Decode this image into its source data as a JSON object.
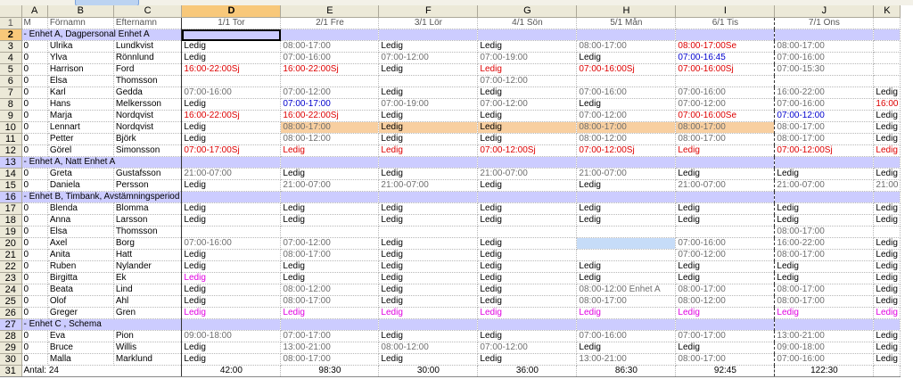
{
  "columns": [
    {
      "letter": "A",
      "width": 23
    },
    {
      "letter": "B",
      "width": 58
    },
    {
      "letter": "C",
      "width": 60
    },
    {
      "letter": "D",
      "width": 111
    },
    {
      "letter": "E",
      "width": 110
    },
    {
      "letter": "F",
      "width": 111
    },
    {
      "letter": "G",
      "width": 111
    },
    {
      "letter": "H",
      "width": 111
    },
    {
      "letter": "I",
      "width": 111
    },
    {
      "letter": "J",
      "width": 111
    },
    {
      "letter": "K",
      "width": 24
    }
  ],
  "selected_column": "D",
  "selected_row": "2",
  "header_row": {
    "num": "1",
    "cells": [
      {
        "text": "M",
        "color": "c-gray"
      },
      {
        "text": "Förnamn",
        "color": "c-gray"
      },
      {
        "text": "Efternamn",
        "color": "c-gray"
      },
      {
        "text": "1/1   Tor",
        "color": "c-red",
        "align": "center"
      },
      {
        "text": "2/1   Fre",
        "color": "c-gray",
        "align": "center"
      },
      {
        "text": "3/1   Lör",
        "color": "c-gray",
        "align": "center"
      },
      {
        "text": "4/1   Sön",
        "color": "c-red",
        "align": "center"
      },
      {
        "text": "5/1   Mån",
        "color": "c-blue",
        "align": "center"
      },
      {
        "text": "6/1   Tis",
        "color": "c-red",
        "align": "center"
      },
      {
        "text": "7/1   Ons",
        "color": "c-gray",
        "align": "center"
      },
      {
        "text": "",
        "color": "c-gray"
      }
    ]
  },
  "rows": [
    {
      "num": "2",
      "type": "group",
      "label": "- Enhet A, Dagpersonal Enhet A"
    },
    {
      "num": "3",
      "m": "0",
      "first": "Ulrika",
      "last": "Lundkvist",
      "days": [
        [
          "Ledig",
          "c-black"
        ],
        [
          "08:00-17:00",
          "c-gray"
        ],
        [
          "Ledig",
          "c-black"
        ],
        [
          "Ledig",
          "c-black"
        ],
        [
          "08:00-17:00",
          "c-gray"
        ],
        [
          "08:00-17:00Se",
          "c-red"
        ],
        [
          "08:00-17:00",
          "c-gray"
        ],
        [
          "",
          "c-black"
        ]
      ]
    },
    {
      "num": "4",
      "m": "0",
      "first": "Ylva",
      "last": "Rönnlund",
      "days": [
        [
          "Ledig",
          "c-black"
        ],
        [
          "07:00-16:00",
          "c-gray"
        ],
        [
          "07:00-12:00",
          "c-gray"
        ],
        [
          "07:00-19:00",
          "c-gray"
        ],
        [
          "Ledig",
          "c-black"
        ],
        [
          "07:00-16:45",
          "c-blue"
        ],
        [
          "07:00-16:00",
          "c-gray"
        ],
        [
          "",
          "c-black"
        ]
      ]
    },
    {
      "num": "5",
      "m": "0",
      "first": "Harrison",
      "last": "Ford",
      "days": [
        [
          "16:00-22:00Sj",
          "c-red"
        ],
        [
          "16:00-22:00Sj",
          "c-red"
        ],
        [
          "Ledig",
          "c-black"
        ],
        [
          "Ledig",
          "c-red"
        ],
        [
          "07:00-16:00Sj",
          "c-red"
        ],
        [
          "07:00-16:00Sj",
          "c-red"
        ],
        [
          "07:00-15:30",
          "c-gray"
        ],
        [
          "",
          "c-black"
        ]
      ]
    },
    {
      "num": "6",
      "m": "0",
      "first": "Elsa",
      "last": "Thomsson",
      "days": [
        [
          "",
          "c-black"
        ],
        [
          "",
          "c-black"
        ],
        [
          "",
          "c-black"
        ],
        [
          "07:00-12:00",
          "c-gray"
        ],
        [
          "",
          "c-black"
        ],
        [
          "",
          "c-black"
        ],
        [
          "",
          "c-black"
        ],
        [
          "",
          "c-black"
        ]
      ]
    },
    {
      "num": "7",
      "m": "0",
      "first": "Karl",
      "last": "Gedda",
      "days": [
        [
          "07:00-16:00",
          "c-gray"
        ],
        [
          "07:00-12:00",
          "c-gray"
        ],
        [
          "Ledig",
          "c-black"
        ],
        [
          "Ledig",
          "c-black"
        ],
        [
          "07:00-16:00",
          "c-gray"
        ],
        [
          "07:00-16:00",
          "c-gray"
        ],
        [
          "16:00-22:00",
          "c-gray"
        ],
        [
          "Ledig",
          "c-black"
        ]
      ]
    },
    {
      "num": "8",
      "m": "0",
      "first": "Hans",
      "last": "Melkersson",
      "days": [
        [
          "Ledig",
          "c-black"
        ],
        [
          "07:00-17:00",
          "c-blue"
        ],
        [
          "07:00-19:00",
          "c-gray"
        ],
        [
          "07:00-12:00",
          "c-gray"
        ],
        [
          "Ledig",
          "c-black"
        ],
        [
          "07:00-12:00",
          "c-gray"
        ],
        [
          "07:00-16:00",
          "c-gray"
        ],
        [
          "16:00",
          "c-red"
        ]
      ]
    },
    {
      "num": "9",
      "m": "0",
      "first": "Marja",
      "last": "Nordqvist",
      "days": [
        [
          "16:00-22:00Sj",
          "c-red"
        ],
        [
          "16:00-22:00Sj",
          "c-red"
        ],
        [
          "Ledig",
          "c-black"
        ],
        [
          "Ledig",
          "c-black"
        ],
        [
          "07:00-12:00",
          "c-gray"
        ],
        [
          "07:00-16:00Se",
          "c-red"
        ],
        [
          "07:00-12:00",
          "c-blue"
        ],
        [
          "Ledig",
          "c-black"
        ]
      ]
    },
    {
      "num": "10",
      "m": "0",
      "first": "Lennart",
      "last": "Nordqvist",
      "days": [
        [
          "Ledig",
          "c-black"
        ],
        [
          "08:00-17:00",
          "c-gray"
        ],
        [
          "Ledig",
          "c-black"
        ],
        [
          "Ledig",
          "c-black"
        ],
        [
          "08:00-17:00",
          "c-gray"
        ],
        [
          "08:00-17:00",
          "c-gray"
        ],
        [
          "08:00-17:00",
          "c-gray"
        ],
        [
          "Ledig",
          "c-black"
        ]
      ],
      "highlight": "bg-orange"
    },
    {
      "num": "11",
      "m": "0",
      "first": "Petter",
      "last": "Björk",
      "days": [
        [
          "Ledig",
          "c-black"
        ],
        [
          "08:00-12:00",
          "c-gray"
        ],
        [
          "Ledig",
          "c-black"
        ],
        [
          "Ledig",
          "c-black"
        ],
        [
          "08:00-12:00",
          "c-gray"
        ],
        [
          "08:00-17:00",
          "c-gray"
        ],
        [
          "08:00-17:00",
          "c-gray"
        ],
        [
          "Ledig",
          "c-black"
        ]
      ]
    },
    {
      "num": "12",
      "m": "0",
      "first": "Görel",
      "last": "Simonsson",
      "days": [
        [
          "07:00-17:00Sj",
          "c-red"
        ],
        [
          "Ledig",
          "c-red"
        ],
        [
          "Ledig",
          "c-red"
        ],
        [
          "07:00-12:00Sj",
          "c-red"
        ],
        [
          "07:00-12:00Sj",
          "c-red"
        ],
        [
          "Ledig",
          "c-red"
        ],
        [
          "07:00-12:00Sj",
          "c-red"
        ],
        [
          "Ledig",
          "c-red"
        ]
      ]
    },
    {
      "num": "13",
      "type": "group",
      "label": "- Enhet A, Natt Enhet A"
    },
    {
      "num": "14",
      "m": "0",
      "first": "Greta",
      "last": "Gustafsson",
      "days": [
        [
          "21:00-07:00",
          "c-gray"
        ],
        [
          "Ledig",
          "c-black"
        ],
        [
          "Ledig",
          "c-black"
        ],
        [
          "21:00-07:00",
          "c-gray"
        ],
        [
          "21:00-07:00",
          "c-gray"
        ],
        [
          "Ledig",
          "c-black"
        ],
        [
          "Ledig",
          "c-black"
        ],
        [
          "Ledig",
          "c-black"
        ]
      ]
    },
    {
      "num": "15",
      "m": "0",
      "first": "Daniela",
      "last": "Persson",
      "days": [
        [
          "Ledig",
          "c-black"
        ],
        [
          "21:00-07:00",
          "c-gray"
        ],
        [
          "21:00-07:00",
          "c-gray"
        ],
        [
          "Ledig",
          "c-black"
        ],
        [
          "Ledig",
          "c-black"
        ],
        [
          "21:00-07:00",
          "c-gray"
        ],
        [
          "21:00-07:00",
          "c-gray"
        ],
        [
          "21:00",
          "c-gray"
        ]
      ]
    },
    {
      "num": "16",
      "type": "group",
      "label": "- Enhet B, Timbank, Avstämningsperiod"
    },
    {
      "num": "17",
      "m": "0",
      "first": "Blenda",
      "last": "Blomma",
      "days": [
        [
          "Ledig",
          "c-black"
        ],
        [
          "Ledig",
          "c-black"
        ],
        [
          "Ledig",
          "c-black"
        ],
        [
          "Ledig",
          "c-black"
        ],
        [
          "Ledig",
          "c-black"
        ],
        [
          "Ledig",
          "c-black"
        ],
        [
          "Ledig",
          "c-black"
        ],
        [
          "Ledig",
          "c-black"
        ]
      ]
    },
    {
      "num": "18",
      "m": "0",
      "first": "Anna",
      "last": "Larsson",
      "days": [
        [
          "Ledig",
          "c-black"
        ],
        [
          "Ledig",
          "c-black"
        ],
        [
          "Ledig",
          "c-black"
        ],
        [
          "Ledig",
          "c-black"
        ],
        [
          "Ledig",
          "c-black"
        ],
        [
          "Ledig",
          "c-black"
        ],
        [
          "Ledig",
          "c-black"
        ],
        [
          "Ledig",
          "c-black"
        ]
      ]
    },
    {
      "num": "19",
      "m": "0",
      "first": "Elsa",
      "last": "Thomsson",
      "days": [
        [
          "",
          "c-black"
        ],
        [
          "",
          "c-black"
        ],
        [
          "",
          "c-black"
        ],
        [
          "",
          "c-black"
        ],
        [
          "",
          "c-black"
        ],
        [
          "",
          "c-black"
        ],
        [
          "08:00-17:00",
          "c-gray"
        ],
        [
          "",
          "c-black"
        ]
      ]
    },
    {
      "num": "20",
      "m": "0",
      "first": "Axel",
      "last": "Borg",
      "days": [
        [
          "07:00-16:00",
          "c-gray"
        ],
        [
          "07:00-12:00",
          "c-gray"
        ],
        [
          "Ledig",
          "c-black"
        ],
        [
          "Ledig",
          "c-black"
        ],
        [
          "",
          "c-black",
          "bg-blue"
        ],
        [
          "07:00-16:00",
          "c-gray"
        ],
        [
          "16:00-22:00",
          "c-gray"
        ],
        [
          "Ledig",
          "c-black"
        ]
      ]
    },
    {
      "num": "21",
      "m": "0",
      "first": "Anita",
      "last": "Hatt",
      "days": [
        [
          "Ledig",
          "c-black"
        ],
        [
          "08:00-17:00",
          "c-gray"
        ],
        [
          "Ledig",
          "c-black"
        ],
        [
          "Ledig",
          "c-black"
        ],
        [
          "",
          "c-black"
        ],
        [
          "07:00-12:00",
          "c-gray"
        ],
        [
          "08:00-17:00",
          "c-gray"
        ],
        [
          "Ledig",
          "c-black"
        ]
      ]
    },
    {
      "num": "22",
      "m": "0",
      "first": "Ruben",
      "last": "Nylander",
      "days": [
        [
          "Ledig",
          "c-black"
        ],
        [
          "Ledig",
          "c-black"
        ],
        [
          "Ledig",
          "c-black"
        ],
        [
          "Ledig",
          "c-black"
        ],
        [
          "Ledig",
          "c-black"
        ],
        [
          "Ledig",
          "c-black"
        ],
        [
          "Ledig",
          "c-black"
        ],
        [
          "Ledig",
          "c-black"
        ]
      ]
    },
    {
      "num": "23",
      "m": "0",
      "first": "Birgitta",
      "last": "Ek",
      "days": [
        [
          "Ledig",
          "c-pink"
        ],
        [
          "Ledig",
          "c-black"
        ],
        [
          "Ledig",
          "c-black"
        ],
        [
          "Ledig",
          "c-black"
        ],
        [
          "Ledig",
          "c-black"
        ],
        [
          "Ledig",
          "c-black"
        ],
        [
          "Ledig",
          "c-black"
        ],
        [
          "Ledig",
          "c-black"
        ]
      ]
    },
    {
      "num": "24",
      "m": "0",
      "first": "Beata",
      "last": "Lind",
      "days": [
        [
          "Ledig",
          "c-black"
        ],
        [
          "08:00-12:00",
          "c-gray"
        ],
        [
          "Ledig",
          "c-black"
        ],
        [
          "Ledig",
          "c-black"
        ],
        [
          "08:00-12:00 Enhet A",
          "c-gray"
        ],
        [
          "08:00-17:00",
          "c-gray"
        ],
        [
          "08:00-17:00",
          "c-gray"
        ],
        [
          "Ledig",
          "c-black"
        ]
      ]
    },
    {
      "num": "25",
      "m": "0",
      "first": "Olof",
      "last": "Ahl",
      "days": [
        [
          "Ledig",
          "c-black"
        ],
        [
          "08:00-17:00",
          "c-gray"
        ],
        [
          "Ledig",
          "c-black"
        ],
        [
          "Ledig",
          "c-black"
        ],
        [
          "08:00-17:00",
          "c-gray"
        ],
        [
          "08:00-12:00",
          "c-gray"
        ],
        [
          "08:00-17:00",
          "c-gray"
        ],
        [
          "Ledig",
          "c-black"
        ]
      ]
    },
    {
      "num": "26",
      "m": "0",
      "first": "Greger",
      "last": "Gren",
      "days": [
        [
          "Ledig",
          "c-pink"
        ],
        [
          "Ledig",
          "c-pink"
        ],
        [
          "Ledig",
          "c-pink"
        ],
        [
          "Ledig",
          "c-pink"
        ],
        [
          "Ledig",
          "c-pink"
        ],
        [
          "Ledig",
          "c-pink"
        ],
        [
          "Ledig",
          "c-pink"
        ],
        [
          "Ledig",
          "c-pink"
        ]
      ]
    },
    {
      "num": "27",
      "type": "group",
      "label": "- Enhet C , Schema"
    },
    {
      "num": "28",
      "m": "0",
      "first": "Eva",
      "last": "Pion",
      "days": [
        [
          "09:00-18:00",
          "c-gray"
        ],
        [
          "07:00-17:00",
          "c-gray"
        ],
        [
          "Ledig",
          "c-black"
        ],
        [
          "Ledig",
          "c-black"
        ],
        [
          "07:00-16:00",
          "c-gray"
        ],
        [
          "07:00-17:00",
          "c-gray"
        ],
        [
          "13:00-21:00",
          "c-gray"
        ],
        [
          "Ledig",
          "c-black"
        ]
      ]
    },
    {
      "num": "29",
      "m": "0",
      "first": "Bruce",
      "last": "Willis",
      "days": [
        [
          "Ledig",
          "c-black"
        ],
        [
          "13:00-21:00",
          "c-gray"
        ],
        [
          "08:00-12:00",
          "c-gray"
        ],
        [
          "07:00-12:00",
          "c-gray"
        ],
        [
          "Ledig",
          "c-black"
        ],
        [
          "Ledig",
          "c-black"
        ],
        [
          "09:00-18:00",
          "c-gray"
        ],
        [
          "Ledig",
          "c-black"
        ]
      ]
    },
    {
      "num": "30",
      "m": "0",
      "first": "Malla",
      "last": "Marklund",
      "days": [
        [
          "Ledig",
          "c-black"
        ],
        [
          "08:00-17:00",
          "c-gray"
        ],
        [
          "Ledig",
          "c-black"
        ],
        [
          "Ledig",
          "c-black"
        ],
        [
          "13:00-21:00",
          "c-gray"
        ],
        [
          "08:00-17:00",
          "c-gray"
        ],
        [
          "07:00-16:00",
          "c-gray"
        ],
        [
          "Ledig",
          "c-black"
        ]
      ]
    }
  ],
  "total_row": {
    "num": "31",
    "label": "Antal: 24",
    "values": [
      "42:00",
      "98:30",
      "30:00",
      "36:00",
      "86:30",
      "92:45",
      "122:30",
      ""
    ]
  }
}
